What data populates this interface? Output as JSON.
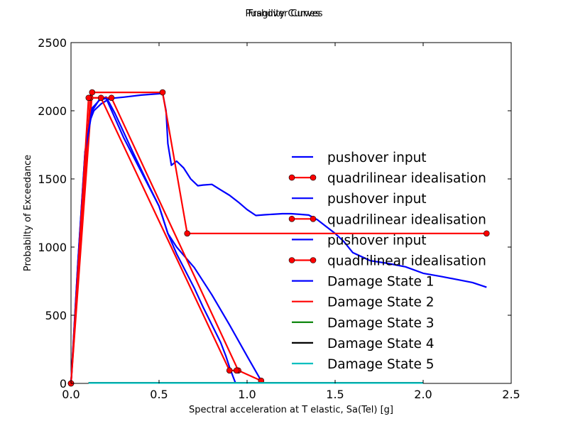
{
  "chart_data": {
    "type": "line",
    "titles": [
      "Pushover Curves",
      "Fragility Curves"
    ],
    "xlabel": "Spectral acceleration at T elastic, Sa(Tel) [g]",
    "ylabel": "Probabilty of Exceedance",
    "xlim": [
      0,
      2.5
    ],
    "ylim": [
      0,
      2500
    ],
    "xticks": [
      0.0,
      0.5,
      1.0,
      1.5,
      2.0,
      2.5
    ],
    "xtick_labels": [
      "0.0",
      "0.5",
      "1.0",
      "1.5",
      "2.0",
      "2.5"
    ],
    "yticks": [
      0,
      500,
      1000,
      1500,
      2000,
      2500
    ],
    "ytick_labels": [
      "0",
      "500",
      "1000",
      "1500",
      "2000",
      "2500"
    ],
    "grid": false,
    "legend_position": "right",
    "series": [
      {
        "name": "pushover input",
        "color": "#0000ff",
        "marker": false,
        "x": [
          0,
          0.05,
          0.08,
          0.1,
          0.13,
          0.17,
          0.22,
          0.3,
          0.4,
          0.5,
          0.52,
          0.54,
          0.55,
          0.57,
          0.6,
          0.64,
          0.68,
          0.72,
          0.75,
          0.8,
          0.85,
          0.9,
          0.95,
          1.0,
          1.05,
          1.1,
          1.2,
          1.25,
          1.3,
          1.35,
          1.4,
          1.45,
          1.5,
          1.55,
          1.6,
          1.7,
          1.8,
          1.9,
          2.0,
          2.1,
          2.2,
          2.28,
          2.36
        ],
        "y": [
          0,
          1000,
          1600,
          1900,
          2000,
          2050,
          2090,
          2100,
          2115,
          2125,
          2130,
          2000,
          1760,
          1600,
          1630,
          1580,
          1500,
          1450,
          1455,
          1460,
          1420,
          1380,
          1330,
          1275,
          1232,
          1237,
          1245,
          1245,
          1240,
          1235,
          1200,
          1150,
          1100,
          1040,
          960,
          900,
          880,
          855,
          808,
          785,
          760,
          740,
          705
        ]
      },
      {
        "name": "quadrilinear idealisation",
        "color": "#ff0000",
        "marker": true,
        "x": [
          0,
          0.12,
          0.52,
          0.66,
          2.36
        ],
        "y": [
          0,
          2135,
          2135,
          1100,
          1100
        ]
      },
      {
        "name": "pushover input",
        "color": "#0000ff",
        "marker": false,
        "x": [
          0,
          0.04,
          0.08,
          0.12,
          0.17,
          0.2,
          0.25,
          0.35,
          0.45,
          0.5,
          0.55,
          0.6,
          0.7,
          0.8,
          0.9,
          1.0,
          1.08
        ],
        "y": [
          0,
          900,
          1700,
          2020,
          2090,
          2100,
          1980,
          1700,
          1430,
          1300,
          1100,
          1000,
          850,
          650,
          430,
          200,
          20
        ]
      },
      {
        "name": "quadrilinear idealisation",
        "color": "#ff0000",
        "marker": true,
        "x": [
          0,
          0.11,
          0.23,
          0.95,
          1.08
        ],
        "y": [
          0,
          2095,
          2095,
          95,
          20
        ]
      },
      {
        "name": "pushover input",
        "color": "#0000ff",
        "marker": false,
        "x": [
          0,
          0.04,
          0.08,
          0.12,
          0.16,
          0.2,
          0.3,
          0.4,
          0.5,
          0.55,
          0.6,
          0.7,
          0.75,
          0.8,
          0.85,
          0.88,
          0.9,
          0.92,
          0.935
        ],
        "y": [
          0,
          900,
          1700,
          2000,
          2080,
          2090,
          1800,
          1550,
          1300,
          1100,
          950,
          700,
          560,
          430,
          300,
          200,
          120,
          50,
          0
        ]
      },
      {
        "name": "quadrilinear idealisation",
        "color": "#ff0000",
        "marker": true,
        "x": [
          0,
          0.1,
          0.17,
          0.9,
          0.94
        ],
        "y": [
          0,
          2095,
          2095,
          95,
          95
        ]
      },
      {
        "name": "Damage State 1",
        "color": "#0000ff",
        "marker": false,
        "x": [
          0.1,
          2.0
        ],
        "y": [
          3,
          3
        ]
      },
      {
        "name": "Damage State 2",
        "color": "#ff0000",
        "marker": false,
        "x": [
          0.1,
          2.0
        ],
        "y": [
          3,
          3
        ]
      },
      {
        "name": "Damage State 3",
        "color": "#008000",
        "marker": false,
        "x": [
          0.1,
          2.0
        ],
        "y": [
          3,
          3
        ]
      },
      {
        "name": "Damage State 4",
        "color": "#000000",
        "marker": false,
        "x": [
          0.1,
          2.0
        ],
        "y": [
          3,
          3
        ]
      },
      {
        "name": "Damage State 5",
        "color": "#00bfbf",
        "marker": false,
        "x": [
          0.1,
          2.0
        ],
        "y": [
          3,
          3
        ]
      }
    ]
  }
}
